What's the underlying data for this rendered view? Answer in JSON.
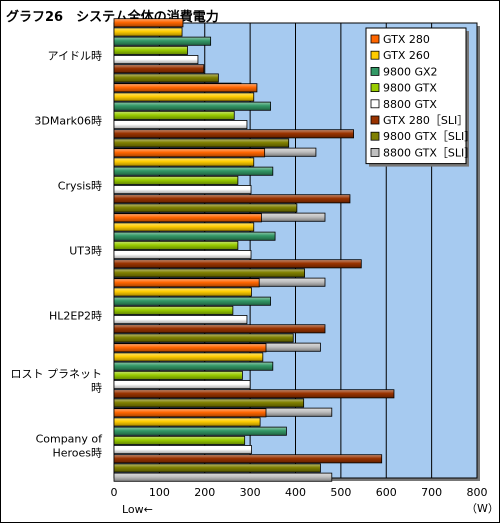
{
  "chart_data": {
    "type": "bar",
    "orientation": "horizontal",
    "title": "グラフ26　システム全体の消費電力",
    "categories": [
      [
        "アイドル時"
      ],
      [
        "3DMark06時"
      ],
      [
        "Crysis時"
      ],
      [
        "UT3時"
      ],
      [
        "HL2EP2時"
      ],
      [
        "ロスト プラネット",
        "時"
      ],
      [
        "Company of",
        "Heroes時"
      ]
    ],
    "series": [
      {
        "name": "GTX 280",
        "color": "#ff6600",
        "values": [
          152,
          315,
          332,
          325,
          320,
          335,
          335
        ]
      },
      {
        "name": "GTX 260",
        "color": "#ffcc00",
        "values": [
          150,
          308,
          308,
          308,
          303,
          328,
          322
        ]
      },
      {
        "name": "9800 GX2",
        "color": "#339966",
        "values": [
          213,
          345,
          350,
          355,
          345,
          350,
          380
        ]
      },
      {
        "name": "9800 GTX",
        "color": "#99cc00",
        "values": [
          162,
          265,
          273,
          273,
          262,
          283,
          288
        ]
      },
      {
        "name": "8800 GTX",
        "color": "#ffffff",
        "values": [
          185,
          293,
          302,
          302,
          293,
          300,
          303
        ]
      },
      {
        "name": "GTX 280［SLI］",
        "color": "#993300",
        "values": [
          198,
          528,
          520,
          545,
          465,
          617,
          590
        ]
      },
      {
        "name": "9800 GTX［SLI］",
        "color": "#808000",
        "values": [
          230,
          385,
          403,
          420,
          395,
          418,
          455
        ]
      },
      {
        "name": "8800 GTX［SLI］",
        "color": "#c0c0c0",
        "values": [
          280,
          445,
          465,
          465,
          455,
          480,
          480
        ]
      }
    ],
    "xlim": [
      0,
      800
    ],
    "xticks": [
      "0",
      "100",
      "200",
      "300",
      "400",
      "500",
      "600",
      "700",
      "800"
    ],
    "xlabel_left": "Low←",
    "unit": "（W）",
    "grid": true,
    "legend_position": "top-right",
    "plot_background": "#a6caf0"
  }
}
